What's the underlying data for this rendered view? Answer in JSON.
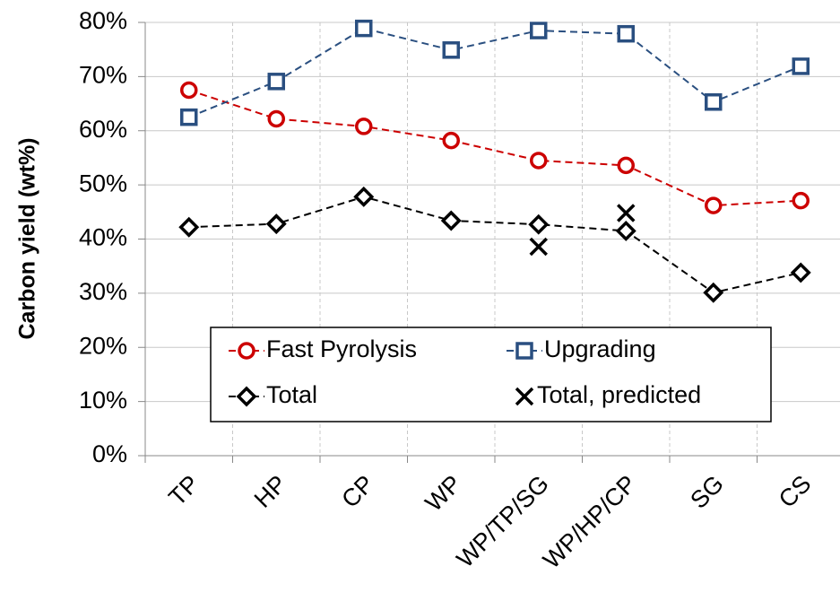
{
  "chart_data": {
    "type": "line",
    "y_label": "Carbon yield (wt%)",
    "categories": [
      "TP",
      "HP",
      "CP",
      "WP",
      "WP/TP/SG",
      "WP/HP/CP",
      "SG",
      "CS"
    ],
    "ylim": [
      0,
      80
    ],
    "yticks": [
      {
        "value": 0,
        "label": "0%"
      },
      {
        "value": 10,
        "label": "10%"
      },
      {
        "value": 20,
        "label": "20%"
      },
      {
        "value": 30,
        "label": "30%"
      },
      {
        "value": 40,
        "label": "40%"
      },
      {
        "value": 50,
        "label": "50%"
      },
      {
        "value": 60,
        "label": "60%"
      },
      {
        "value": 70,
        "label": "70%"
      },
      {
        "value": 80,
        "label": "80%"
      }
    ],
    "grid": true,
    "series": [
      {
        "name": "Fast Pyrolysis",
        "color": "#cc0000",
        "marker": "circle",
        "line": true,
        "values": [
          67.5,
          62.2,
          60.8,
          58.2,
          54.5,
          53.6,
          46.2,
          47.1
        ]
      },
      {
        "name": "Upgrading",
        "color": "#2a4f80",
        "marker": "square",
        "line": true,
        "values": [
          62.5,
          69.1,
          78.9,
          74.9,
          78.5,
          77.9,
          65.3,
          71.9
        ]
      },
      {
        "name": "Total",
        "color": "#000000",
        "marker": "diamond",
        "line": true,
        "values": [
          42.2,
          42.8,
          47.8,
          43.4,
          42.7,
          41.5,
          30.1,
          33.8
        ]
      },
      {
        "name": "Total, predicted",
        "color": "#000000",
        "marker": "x",
        "line": false,
        "values": [
          null,
          null,
          null,
          null,
          38.6,
          44.8,
          null,
          null
        ]
      }
    ]
  }
}
